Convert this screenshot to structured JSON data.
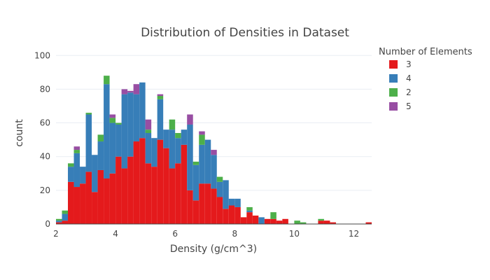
{
  "chart_data": {
    "type": "bar",
    "barmode": "stack",
    "title": "Distribution of Densities in Dataset",
    "xlabel": "Density (g/cm^3)",
    "ylabel": "count",
    "xlim": [
      2,
      12.6
    ],
    "ylim": [
      0,
      108
    ],
    "xticks": [
      2,
      4,
      6,
      8,
      10,
      12
    ],
    "yticks": [
      0,
      20,
      40,
      60,
      80,
      100
    ],
    "grid": true,
    "legend_title": "Number of Elements",
    "legend_position": "right",
    "bin_start": 2.0,
    "bin_width": 0.2,
    "series": [
      {
        "name": "3",
        "color": "#e41a1c",
        "values": [
          1,
          2,
          25,
          22,
          24,
          31,
          19,
          32,
          27,
          30,
          40,
          33,
          40,
          49,
          51,
          36,
          34,
          50,
          45,
          33,
          36,
          47,
          20,
          14,
          24,
          24,
          21,
          16,
          9,
          11,
          10,
          4,
          7,
          5,
          0,
          3,
          3,
          2,
          3,
          0,
          0,
          0,
          0,
          0,
          2,
          2,
          1,
          0,
          0,
          0,
          0,
          0,
          1
        ]
      },
      {
        "name": "4",
        "color": "#377eb8",
        "values": [
          1,
          4,
          9,
          20,
          10,
          34,
          22,
          17,
          56,
          30,
          19,
          44,
          38,
          28,
          33,
          18,
          17,
          24,
          11,
          23,
          15,
          9,
          39,
          21,
          23,
          26,
          20,
          9,
          17,
          4,
          5,
          0,
          1,
          0,
          4,
          0,
          0,
          0,
          0,
          0,
          0,
          0,
          0,
          0,
          0,
          0,
          0,
          0,
          0,
          0,
          0,
          0,
          0
        ]
      },
      {
        "name": "2",
        "color": "#4daf4a",
        "values": [
          1,
          2,
          2,
          2,
          0,
          1,
          0,
          4,
          5,
          3,
          1,
          0,
          0,
          0,
          0,
          2,
          0,
          2,
          0,
          6,
          3,
          0,
          0,
          2,
          6,
          0,
          0,
          3,
          0,
          0,
          0,
          0,
          2,
          0,
          0,
          0,
          4,
          0,
          0,
          0,
          2,
          1,
          0,
          0,
          1,
          0,
          0,
          0,
          0,
          0,
          0,
          0,
          0
        ]
      },
      {
        "name": "5",
        "color": "#984ea3",
        "values": [
          0,
          0,
          0,
          2,
          0,
          0,
          0,
          0,
          0,
          2,
          0,
          3,
          1,
          6,
          0,
          6,
          0,
          1,
          0,
          0,
          0,
          0,
          6,
          0,
          2,
          0,
          3,
          0,
          0,
          0,
          0,
          0,
          0,
          0,
          0,
          0,
          0,
          0,
          0,
          0,
          0,
          0,
          0,
          0,
          0,
          0,
          0,
          0,
          0,
          0,
          0,
          0,
          0
        ]
      }
    ]
  }
}
